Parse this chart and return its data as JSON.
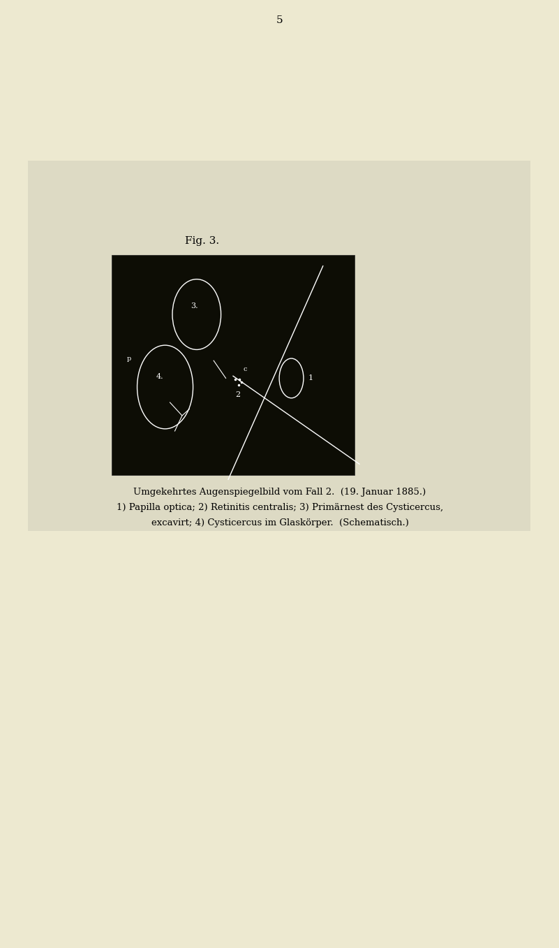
{
  "page_bg": "#ede9d0",
  "figure_bg": "#dddac4",
  "page_number": "5",
  "fig_title": "Fig. 3.",
  "caption_line1": "Umgekehrtes Augenspiegelbild vom Fall 2.  (19. Januar 1885.)",
  "caption_line2": "1) Papilla optica; 2) Retinitis centralis; 3) Primärnest des Cysticercus,",
  "caption_line3": "excavirt; 4) Cysticercus im Glaskörper.  (Schematisch.)",
  "image_bg": "#0d0d05",
  "white": "#ffffff"
}
